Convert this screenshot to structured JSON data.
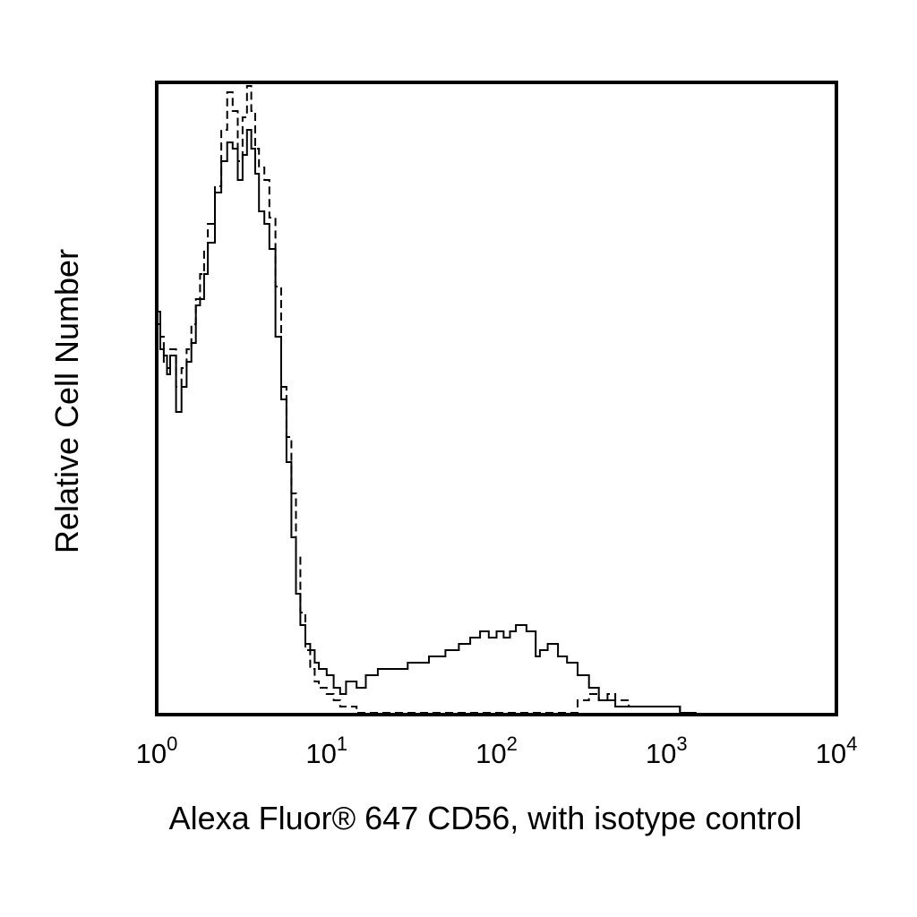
{
  "chart_data": {
    "type": "line",
    "xlabel": "Alexa Fluor® 647 CD56, with isotype control",
    "ylabel": "Relative Cell Number",
    "x_scale": "log",
    "xlim": [
      1,
      10000
    ],
    "ylim": [
      0,
      100
    ],
    "grid": false,
    "ticks": [
      {
        "base": "10",
        "exp": "0"
      },
      {
        "base": "10",
        "exp": "1"
      },
      {
        "base": "10",
        "exp": "2"
      },
      {
        "base": "10",
        "exp": "3"
      },
      {
        "base": "10",
        "exp": "4"
      }
    ],
    "series": [
      {
        "style": "solid",
        "color": "#000000",
        "x": [
          1.0,
          1.05,
          1.1,
          1.15,
          1.2,
          1.3,
          1.4,
          1.5,
          1.6,
          1.7,
          1.8,
          1.9,
          2.0,
          2.2,
          2.4,
          2.6,
          2.8,
          3.0,
          3.2,
          3.4,
          3.6,
          3.8,
          4.0,
          4.3,
          4.6,
          5.0,
          5.4,
          5.8,
          6.2,
          6.6,
          7.0,
          7.5,
          8.0,
          8.5,
          9.0,
          10,
          11,
          12,
          13,
          15,
          17,
          20,
          25,
          30,
          40,
          50,
          60,
          70,
          80,
          90,
          100,
          110,
          120,
          130,
          150,
          170,
          180,
          200,
          230,
          260,
          300,
          350,
          400,
          450,
          500,
          600,
          700,
          800,
          900,
          1000,
          1200,
          1500
        ],
        "y": [
          64,
          58,
          57,
          54,
          57,
          48,
          52,
          56,
          59,
          65,
          66,
          70,
          75,
          83,
          88,
          91,
          90,
          85,
          89,
          93,
          90,
          86,
          80,
          78,
          74,
          60,
          50,
          40,
          28,
          19,
          14,
          11,
          10,
          8,
          7,
          6,
          4,
          3,
          5,
          4,
          6,
          7,
          7,
          8,
          9,
          10,
          11,
          12,
          13,
          12,
          13,
          12,
          13,
          14,
          13,
          9,
          10,
          11,
          9,
          8,
          6,
          4,
          2,
          2,
          1,
          1,
          1,
          1,
          1,
          1,
          0,
          0
        ]
      },
      {
        "style": "dashed",
        "color": "#000000",
        "x": [
          1.0,
          1.05,
          1.1,
          1.15,
          1.2,
          1.3,
          1.4,
          1.5,
          1.6,
          1.7,
          1.8,
          1.9,
          2.0,
          2.2,
          2.4,
          2.6,
          2.8,
          3.0,
          3.2,
          3.4,
          3.6,
          3.8,
          4.0,
          4.3,
          4.6,
          5.0,
          5.4,
          5.8,
          6.2,
          6.6,
          7.0,
          7.5,
          8.0,
          8.5,
          9.0,
          10,
          11,
          12,
          13,
          15,
          17,
          20,
          25,
          30,
          40,
          50,
          60,
          70,
          80,
          90,
          100,
          110,
          120,
          130,
          150,
          170,
          180,
          200,
          230,
          260,
          300,
          350,
          400,
          450,
          500,
          600,
          700,
          800,
          900,
          1000,
          1200,
          1500
        ],
        "y": [
          62,
          60,
          56,
          55,
          58,
          52,
          55,
          58,
          62,
          66,
          70,
          74,
          78,
          84,
          93,
          99,
          96,
          88,
          95,
          100,
          96,
          90,
          87,
          85,
          79,
          68,
          52,
          44,
          35,
          25,
          16,
          10,
          7,
          5,
          4,
          3,
          2,
          1,
          1,
          0,
          0,
          0,
          0,
          0,
          0,
          0,
          0,
          0,
          0,
          0,
          0,
          0,
          0,
          0,
          0,
          0,
          0,
          0,
          0,
          0,
          2,
          3,
          2,
          3,
          2,
          1,
          1,
          1,
          1,
          1,
          0,
          0
        ]
      }
    ]
  }
}
